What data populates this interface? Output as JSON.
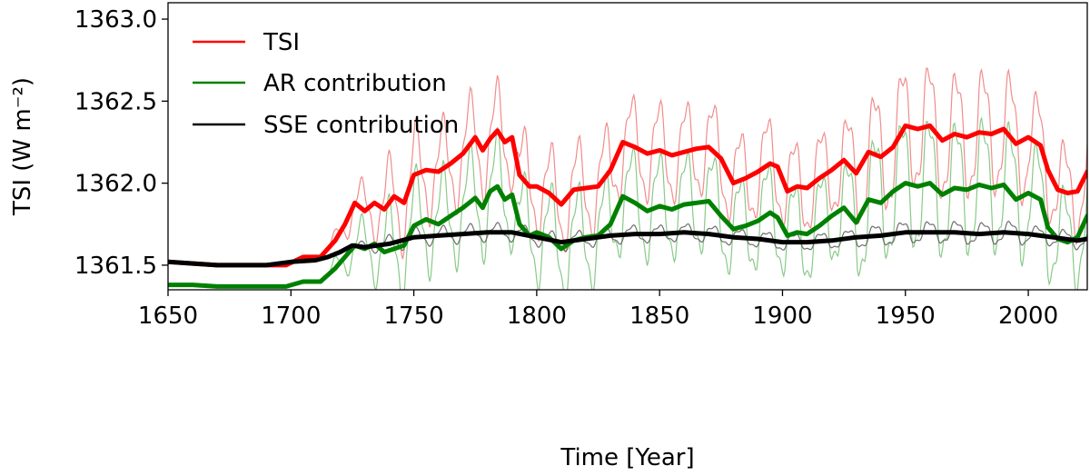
{
  "chart_data": {
    "type": "line",
    "title": "",
    "xlabel": "Time [Year]",
    "ylabel": "TSI (W m⁻²)",
    "xlim": [
      1650,
      2024
    ],
    "ylim": [
      1361.35,
      1363.1
    ],
    "xticks": [
      1650,
      1700,
      1750,
      1800,
      1850,
      1900,
      1950,
      2000
    ],
    "xtick_labels": [
      "1650",
      "1700",
      "1750",
      "1800",
      "1850",
      "1900",
      "1950",
      "2000"
    ],
    "yticks": [
      1361.5,
      1362.0,
      1362.5,
      1363.0
    ],
    "ytick_labels": [
      "1361.5",
      "1362.0",
      "1362.5",
      "1363.0"
    ],
    "legend": {
      "position": "top-left",
      "entries": [
        {
          "label": "TSI",
          "color": "#ff0000"
        },
        {
          "label": "AR contribution",
          "color": "#008000"
        },
        {
          "label": "SSE contribution",
          "color": "#000000"
        }
      ]
    },
    "smoothed_series": [
      {
        "name": "TSI",
        "color": "#ff0000",
        "x": [
          1650,
          1660,
          1670,
          1680,
          1690,
          1698,
          1705,
          1712,
          1718,
          1722,
          1726,
          1730,
          1734,
          1738,
          1742,
          1746,
          1750,
          1755,
          1760,
          1765,
          1770,
          1775,
          1778,
          1781,
          1784,
          1787,
          1790,
          1793,
          1797,
          1800,
          1805,
          1810,
          1815,
          1820,
          1825,
          1830,
          1835,
          1840,
          1845,
          1850,
          1855,
          1860,
          1865,
          1870,
          1875,
          1880,
          1885,
          1890,
          1895,
          1898,
          1902,
          1906,
          1910,
          1915,
          1920,
          1925,
          1930,
          1935,
          1940,
          1945,
          1950,
          1955,
          1960,
          1965,
          1970,
          1975,
          1980,
          1985,
          1990,
          1995,
          2000,
          2005,
          2008,
          2012,
          2016,
          2020,
          2024
        ],
        "y": [
          1361.52,
          1361.51,
          1361.5,
          1361.5,
          1361.5,
          1361.5,
          1361.55,
          1361.55,
          1361.65,
          1361.75,
          1361.88,
          1361.83,
          1361.88,
          1361.84,
          1361.92,
          1361.88,
          1362.05,
          1362.08,
          1362.07,
          1362.12,
          1362.18,
          1362.28,
          1362.2,
          1362.27,
          1362.32,
          1362.25,
          1362.28,
          1362.05,
          1361.98,
          1361.98,
          1361.94,
          1361.87,
          1361.96,
          1361.97,
          1361.98,
          1362.08,
          1362.25,
          1362.22,
          1362.18,
          1362.2,
          1362.17,
          1362.19,
          1362.21,
          1362.22,
          1362.15,
          1362.0,
          1362.03,
          1362.07,
          1362.12,
          1362.1,
          1361.95,
          1361.98,
          1361.97,
          1362.03,
          1362.08,
          1362.14,
          1362.06,
          1362.19,
          1362.16,
          1362.22,
          1362.35,
          1362.33,
          1362.35,
          1362.26,
          1362.3,
          1362.28,
          1362.31,
          1362.3,
          1362.33,
          1362.24,
          1362.28,
          1362.23,
          1362.08,
          1361.96,
          1361.94,
          1361.95,
          1362.07
        ]
      },
      {
        "name": "AR contribution",
        "color": "#008000",
        "x": [
          1650,
          1660,
          1670,
          1680,
          1690,
          1698,
          1705,
          1712,
          1718,
          1722,
          1726,
          1730,
          1734,
          1738,
          1742,
          1746,
          1750,
          1755,
          1760,
          1765,
          1770,
          1775,
          1778,
          1781,
          1784,
          1787,
          1790,
          1793,
          1797,
          1800,
          1805,
          1810,
          1815,
          1820,
          1825,
          1830,
          1835,
          1840,
          1845,
          1850,
          1855,
          1860,
          1865,
          1870,
          1875,
          1880,
          1885,
          1890,
          1895,
          1898,
          1902,
          1906,
          1910,
          1915,
          1920,
          1925,
          1930,
          1935,
          1940,
          1945,
          1950,
          1955,
          1960,
          1965,
          1970,
          1975,
          1980,
          1985,
          1990,
          1995,
          2000,
          2005,
          2008,
          2012,
          2016,
          2020,
          2024
        ],
        "y": [
          1361.38,
          1361.38,
          1361.37,
          1361.37,
          1361.37,
          1361.37,
          1361.4,
          1361.4,
          1361.48,
          1361.55,
          1361.62,
          1361.6,
          1361.63,
          1361.58,
          1361.6,
          1361.62,
          1361.74,
          1361.78,
          1361.75,
          1361.8,
          1361.85,
          1361.91,
          1361.85,
          1361.95,
          1361.98,
          1361.9,
          1361.93,
          1361.75,
          1361.68,
          1361.7,
          1361.67,
          1361.6,
          1361.65,
          1361.67,
          1361.68,
          1361.75,
          1361.92,
          1361.88,
          1361.83,
          1361.86,
          1361.84,
          1361.87,
          1361.88,
          1361.89,
          1361.8,
          1361.72,
          1361.74,
          1361.77,
          1361.82,
          1361.79,
          1361.68,
          1361.7,
          1361.69,
          1361.74,
          1361.8,
          1361.85,
          1361.76,
          1361.9,
          1361.88,
          1361.95,
          1362.0,
          1361.98,
          1362.0,
          1361.93,
          1361.97,
          1361.96,
          1361.99,
          1361.97,
          1361.99,
          1361.9,
          1361.94,
          1361.9,
          1361.73,
          1361.66,
          1361.64,
          1361.67,
          1361.8
        ]
      },
      {
        "name": "SSE contribution",
        "color": "#000000",
        "x": [
          1650,
          1670,
          1690,
          1700,
          1710,
          1715,
          1720,
          1725,
          1730,
          1740,
          1750,
          1760,
          1770,
          1780,
          1790,
          1800,
          1810,
          1820,
          1830,
          1840,
          1850,
          1860,
          1870,
          1880,
          1890,
          1900,
          1910,
          1920,
          1930,
          1940,
          1950,
          1960,
          1970,
          1980,
          1990,
          2000,
          2010,
          2020,
          2024
        ],
        "y": [
          1361.52,
          1361.5,
          1361.5,
          1361.52,
          1361.53,
          1361.55,
          1361.58,
          1361.62,
          1361.61,
          1361.63,
          1361.67,
          1361.68,
          1361.69,
          1361.7,
          1361.7,
          1361.67,
          1361.64,
          1361.66,
          1361.68,
          1361.69,
          1361.69,
          1361.7,
          1361.69,
          1361.67,
          1361.66,
          1361.64,
          1361.64,
          1361.65,
          1361.67,
          1361.68,
          1361.7,
          1361.7,
          1361.7,
          1361.69,
          1361.7,
          1361.69,
          1361.67,
          1361.65,
          1361.66
        ]
      }
    ],
    "raw_series": [
      {
        "name": "TSI raw",
        "color": "#f08080",
        "follows": "TSI",
        "amplitude": 0.28,
        "period_years": 11
      },
      {
        "name": "AR raw",
        "color": "#7cc47c",
        "follows": "AR contribution",
        "amplitude": 0.3,
        "period_years": 11
      },
      {
        "name": "SSE raw",
        "color": "#606060",
        "follows": "SSE contribution",
        "amplitude": 0.05,
        "period_years": 11
      }
    ]
  }
}
